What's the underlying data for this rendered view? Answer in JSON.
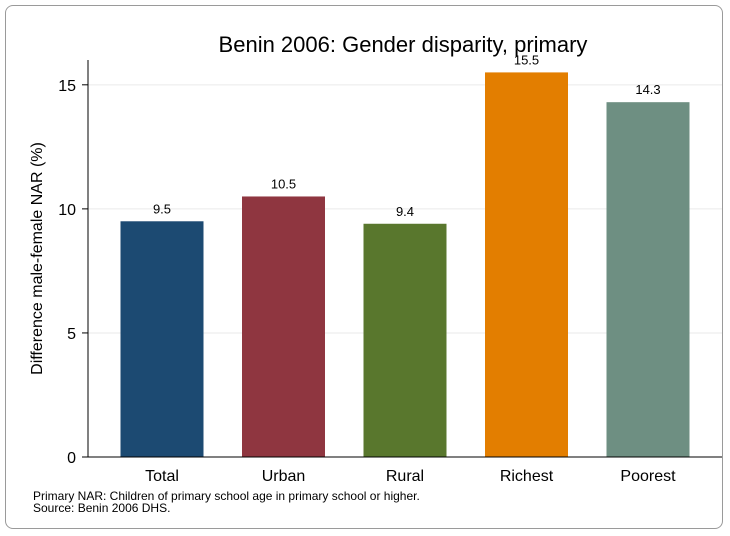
{
  "chart_data": {
    "type": "bar",
    "title": "Benin 2006: Gender disparity, primary",
    "ylabel": "Difference male-female NAR (%)",
    "xlabel": "",
    "categories": [
      "Total",
      "Urban",
      "Rural",
      "Richest",
      "Poorest"
    ],
    "values": [
      9.5,
      10.5,
      9.4,
      15.5,
      14.3
    ],
    "value_labels": [
      "9.5",
      "10.5",
      "9.4",
      "15.5",
      "14.3"
    ],
    "colors": [
      "#1c4a72",
      "#8f3640",
      "#59772d",
      "#e37e00",
      "#6e8f82"
    ],
    "ylim": [
      0,
      16
    ],
    "yticks": [
      0,
      5,
      10,
      15
    ],
    "ytick_labels": [
      "0",
      "5",
      "10",
      "15"
    ],
    "grid": true,
    "legend": "none"
  },
  "notes": {
    "line1": "Primary NAR: Children of primary school age in primary school or higher.",
    "line2": "Source: Benin 2006 DHS."
  }
}
